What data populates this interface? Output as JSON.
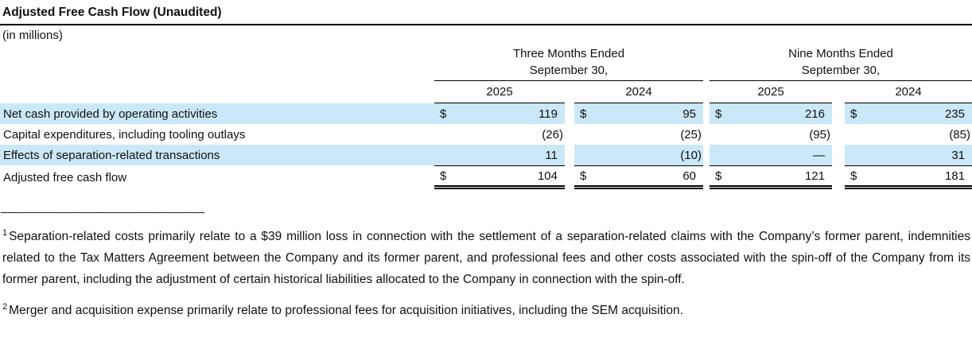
{
  "header": {
    "title": "Adjusted Free Cash Flow (Unaudited)",
    "units": "(in millions)"
  },
  "table": {
    "groups": [
      {
        "line1": "Three Months Ended",
        "line2": "September 30,"
      },
      {
        "line1": "Nine Months Ended",
        "line2": "September 30,"
      }
    ],
    "years": [
      "2025",
      "2024",
      "2025",
      "2024"
    ],
    "rows": [
      {
        "label": "Net cash provided by operating activities",
        "currency": [
          "$",
          "$",
          "$",
          "$"
        ],
        "values": [
          "119",
          "95",
          "216",
          "235"
        ]
      },
      {
        "label": "Capital expenditures, including tooling outlays",
        "currency": [
          "",
          "",
          "",
          ""
        ],
        "values": [
          "(26)",
          "(25)",
          "(95)",
          "(85)"
        ]
      },
      {
        "label": "Effects of separation-related transactions",
        "currency": [
          "",
          "",
          "",
          ""
        ],
        "values": [
          "11",
          "(10)",
          "—",
          "31"
        ]
      },
      {
        "label": "Adjusted free cash flow",
        "currency": [
          "$",
          "$",
          "$",
          "$"
        ],
        "values": [
          "104",
          "60",
          "121",
          "181"
        ]
      }
    ]
  },
  "footnote_separator": "_____________________________",
  "footnotes": [
    {
      "marker": "1",
      "text": "Separation-related costs primarily relate to a $39 million loss in connection with the settlement of a separation-related claims with the Company’s former parent, indemnities related to the Tax Matters Agreement between the Company and its former parent, and professional fees and other costs associated with the spin-off of the Company from its former parent, including the adjustment of certain historical liabilities allocated to the Company in connection with the spin-off."
    },
    {
      "marker": "2",
      "text": "Merger and acquisition expense primarily relate to professional fees for acquisition initiatives, including the SEM acquisition."
    }
  ],
  "colors": {
    "row_shade": "#cae8f7",
    "text": "#111111",
    "rule": "#000000"
  }
}
